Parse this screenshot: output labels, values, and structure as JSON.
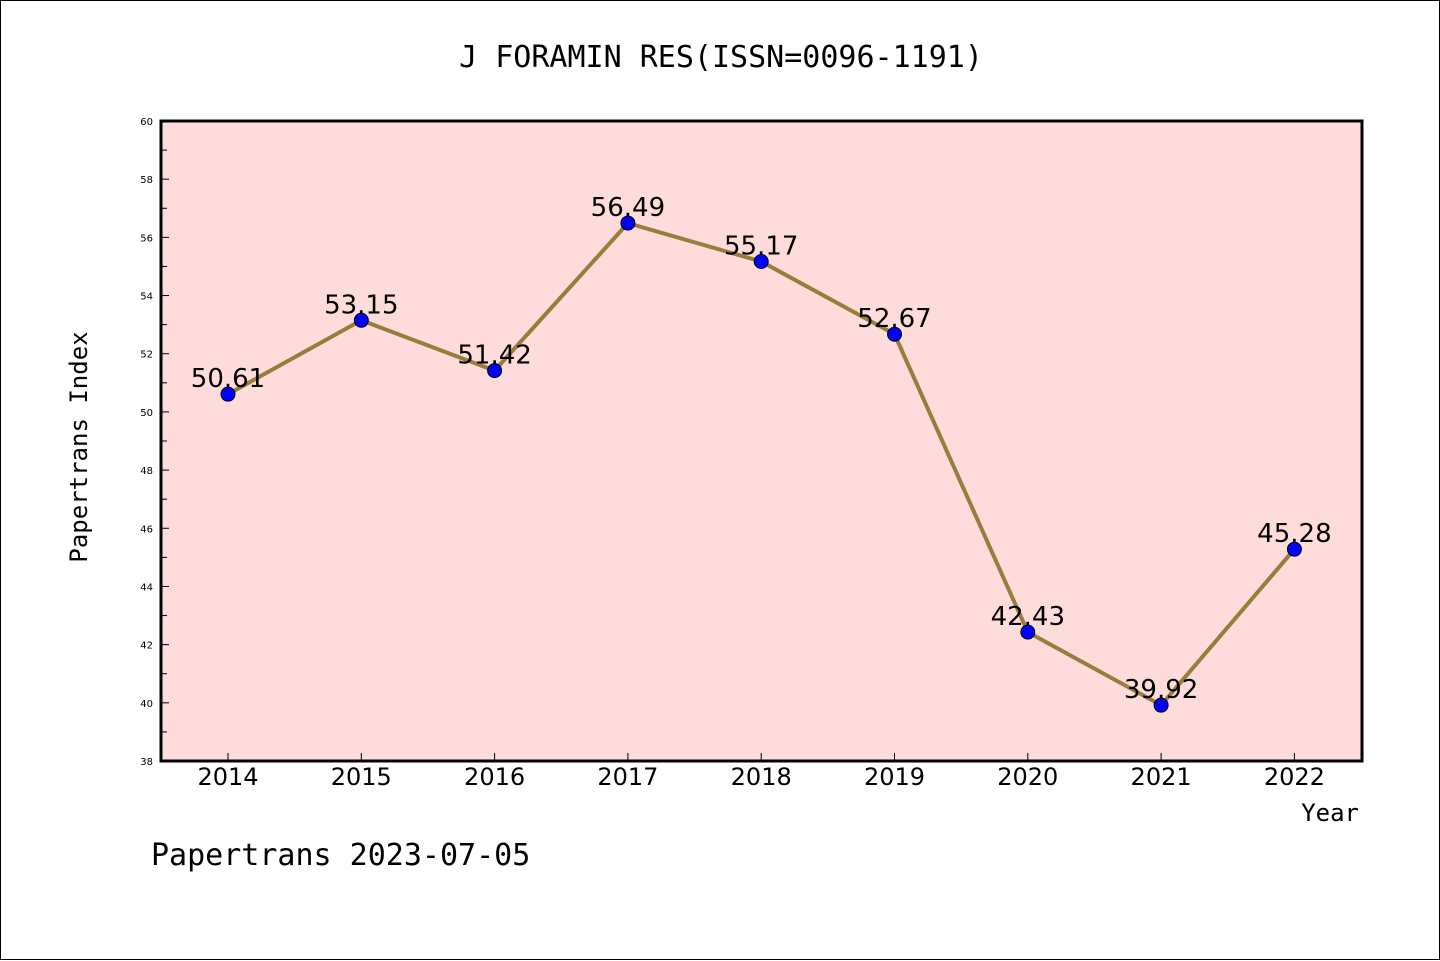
{
  "chart_data": {
    "type": "line",
    "title": "J FORAMIN RES(ISSN=0096-1191)",
    "xlabel": "Year",
    "ylabel": "Papertrans Index",
    "categories": [
      "2014",
      "2015",
      "2016",
      "2017",
      "2018",
      "2019",
      "2020",
      "2021",
      "2022"
    ],
    "series": [
      {
        "values": [
          50.61,
          53.15,
          51.42,
          56.49,
          55.17,
          52.67,
          42.43,
          39.92,
          45.28
        ]
      }
    ],
    "data_labels": [
      "50.61",
      "53.15",
      "51.42",
      "56.49",
      "55.17",
      "52.67",
      "42.43",
      "39.92",
      "45.28"
    ],
    "ylim": [
      38,
      60
    ],
    "yticks": [
      "38",
      "40",
      "42",
      "44",
      "46",
      "48",
      "50",
      "52",
      "54",
      "56",
      "58",
      "60"
    ],
    "grid": false,
    "colors": {
      "plot_background": "#ffdcdc",
      "line": "#9a7d3a",
      "marker": "#0000ff"
    }
  },
  "footer": "Papertrans 2023-07-05"
}
